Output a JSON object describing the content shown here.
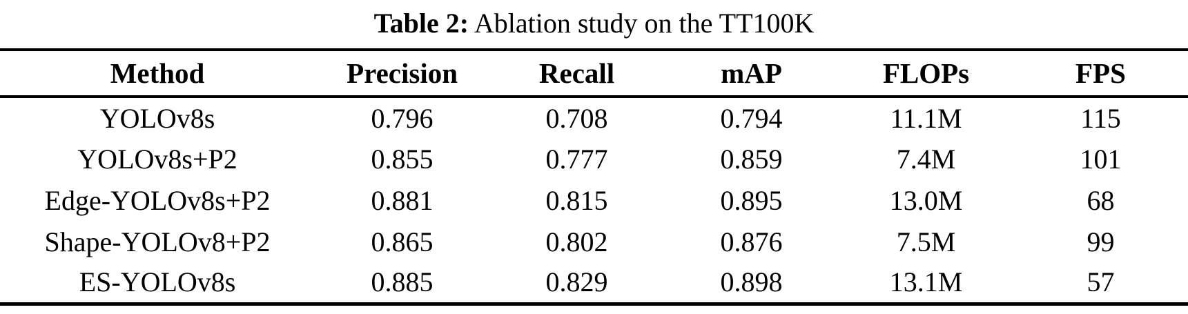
{
  "caption": {
    "label": "Table 2:",
    "text": " Ablation study on the TT100K"
  },
  "colors": {
    "background": "#ffffff",
    "text": "#000000",
    "rule": "#000000"
  },
  "table": {
    "columns": [
      "Method",
      "Precision",
      "Recall",
      "mAP",
      "FLOPs",
      "FPS"
    ],
    "rows": [
      {
        "method": "YOLOv8s",
        "precision": "0.796",
        "recall": "0.708",
        "map": "0.794",
        "flops": "11.1M",
        "fps": "115"
      },
      {
        "method": "YOLOv8s+P2",
        "precision": "0.855",
        "recall": "0.777",
        "map": "0.859",
        "flops": "7.4M",
        "fps": "101"
      },
      {
        "method": "Edge-YOLOv8s+P2",
        "precision": "0.881",
        "recall": "0.815",
        "map": "0.895",
        "flops": "13.0M",
        "fps": "68"
      },
      {
        "method": "Shape-YOLOv8+P2",
        "precision": "0.865",
        "recall": "0.802",
        "map": "0.876",
        "flops": "7.5M",
        "fps": "99"
      },
      {
        "method": "ES-YOLOv8s",
        "precision": "0.885",
        "recall": "0.829",
        "map": "0.898",
        "flops": "13.1M",
        "fps": "57"
      }
    ]
  }
}
